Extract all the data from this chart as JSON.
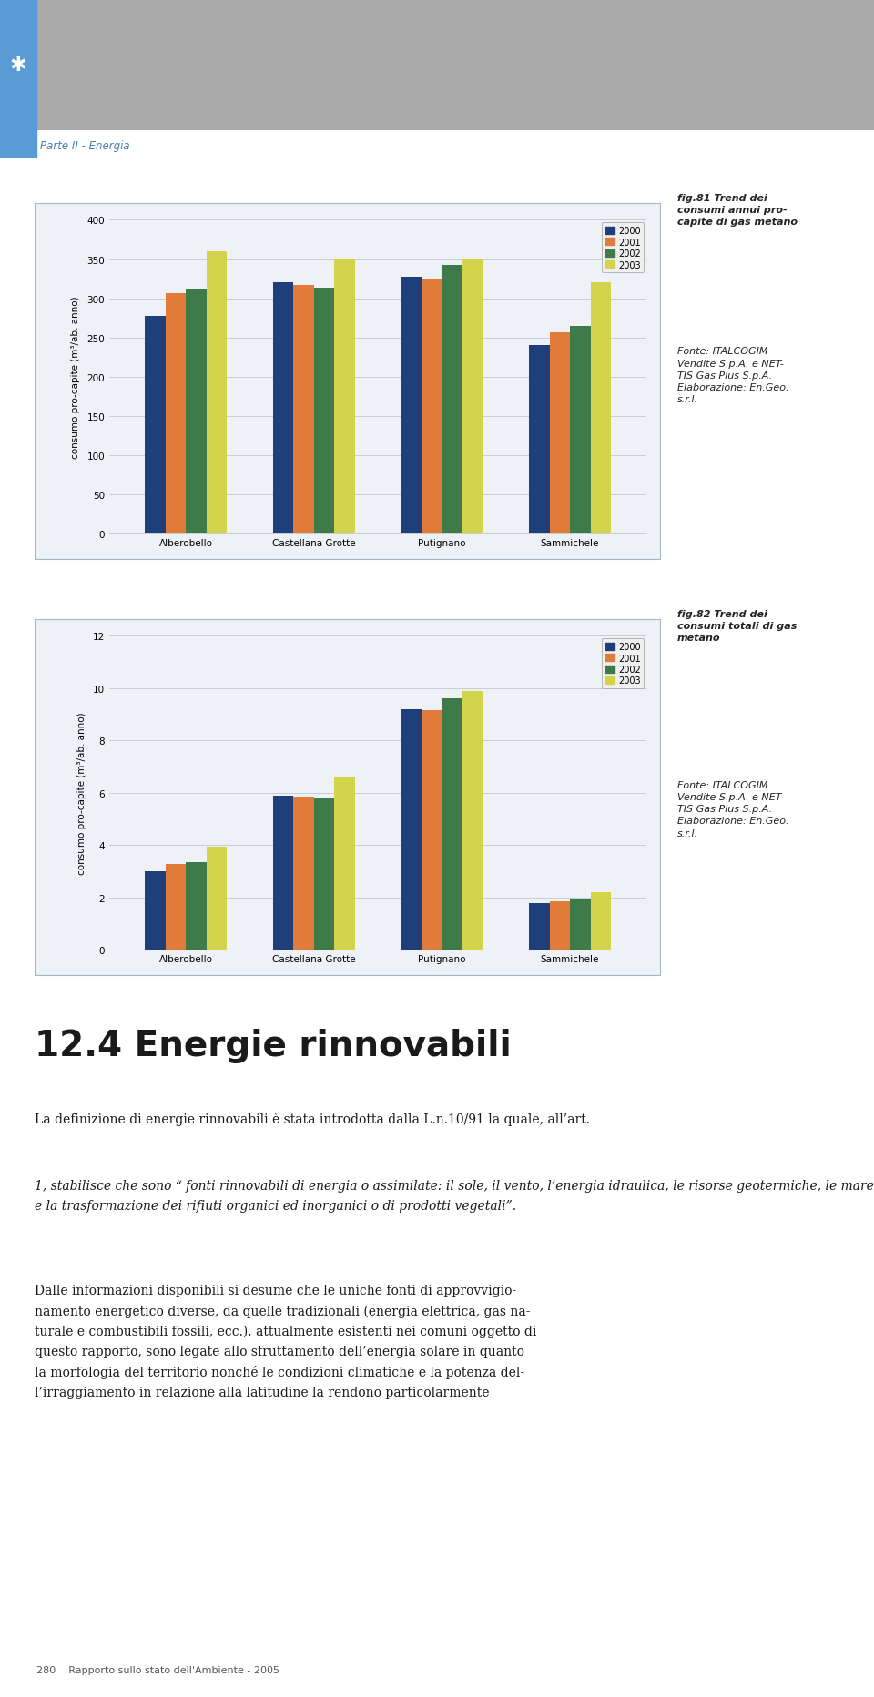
{
  "page_bg": "#ffffff",
  "header_text": "Parte II - Energia",
  "header_text_color": "#4a7fb5",
  "header_blue": "#5b9bd5",
  "chart1": {
    "categories": [
      "Alberobello",
      "Castellana Grotte",
      "Putignano",
      "Sammichele"
    ],
    "series": {
      "2000": [
        278,
        320,
        327,
        240
      ],
      "2001": [
        307,
        317,
        325,
        257
      ],
      "2002": [
        312,
        313,
        343,
        265
      ],
      "2003": [
        360,
        350,
        350,
        320
      ]
    },
    "colors": {
      "2000": "#1f3f7a",
      "2001": "#e07b39",
      "2002": "#3e7a4a",
      "2003": "#d4d44a"
    },
    "ylabel": "consumo pro-capite (m³/ab. anno)",
    "ylim": [
      0,
      400
    ],
    "yticks": [
      0,
      50,
      100,
      150,
      200,
      250,
      300,
      350,
      400
    ],
    "caption_bold": "fig.81 Trend dei\nconsumi annui pro-\ncapite di gas metano",
    "caption_normal": "Fonte: ITALCOGIM\nVendite S.p.A. e NET-\nTIS Gas Plus S.p.A.\nElaborazione: En.Geo.\ns.r.l."
  },
  "chart2": {
    "categories": [
      "Alberobello",
      "Castellana Grotte",
      "Putignano",
      "Sammichele"
    ],
    "series": {
      "2000": [
        3.0,
        5.9,
        9.2,
        1.8
      ],
      "2001": [
        3.3,
        5.85,
        9.15,
        1.85
      ],
      "2002": [
        3.35,
        5.8,
        9.6,
        1.95
      ],
      "2003": [
        3.95,
        6.6,
        9.9,
        2.2
      ]
    },
    "colors": {
      "2000": "#1f3f7a",
      "2001": "#e07b39",
      "2002": "#3e7a4a",
      "2003": "#d4d44a"
    },
    "ylabel": "consumo pro-capite (m³/ab. anno)",
    "ylim": [
      0,
      12
    ],
    "yticks": [
      0,
      2,
      4,
      6,
      8,
      10,
      12
    ],
    "caption_bold": "fig.82 Trend dei\nconsumi totali di gas\nmetano",
    "caption_normal": "Fonte: ITALCOGIM\nVendite S.p.A. e NET-\nTIS Gas Plus S.p.A.\nElaborazione: En.Geo.\ns.r.l."
  },
  "legend_years": [
    "2000",
    "2001",
    "2002",
    "2003"
  ],
  "section_title": "12.4 Energie rinnovabili",
  "para1": "La definizione di energie rinnovabili è stata introdotta dalla L.n.10/91 la quale, all’art.",
  "para2_normal": "1, stabilisce che sono “",
  "para2_italic": "fonti rinnovabili di energia o assimilate: il sole, il vento, l’energia idraulica, le risorse geotermiche, le maree, il moto ondoso e la trasformazione dei rifiuti organici ed inorganici o di prodotti vegetali",
  "para2_end": "”.",
  "para3": "Dalle informazioni disponibili si desume che le uniche fonti di approvvigio-\nnamento energetico diverse, da quelle tradizionali (energia elettrica, gas na-\nturale e combustibili fossili, ecc.), attualmente esistenti nei comuni oggetto di\nquesto rapporto, sono legate allo sfruttamento dell’energia solare in quanto\nla morfologia del territorio nonché le condizioni climatiche e la potenza del-\nl’irraggiamento in relazione alla latitudine la rendono particolarmente",
  "footer_text": "280    Rapporto sullo stato dell'Ambiente - 2005",
  "footer_bg": "#dde8f0",
  "box_bg": "#eef2f7",
  "box_border": "#a0b8cc"
}
